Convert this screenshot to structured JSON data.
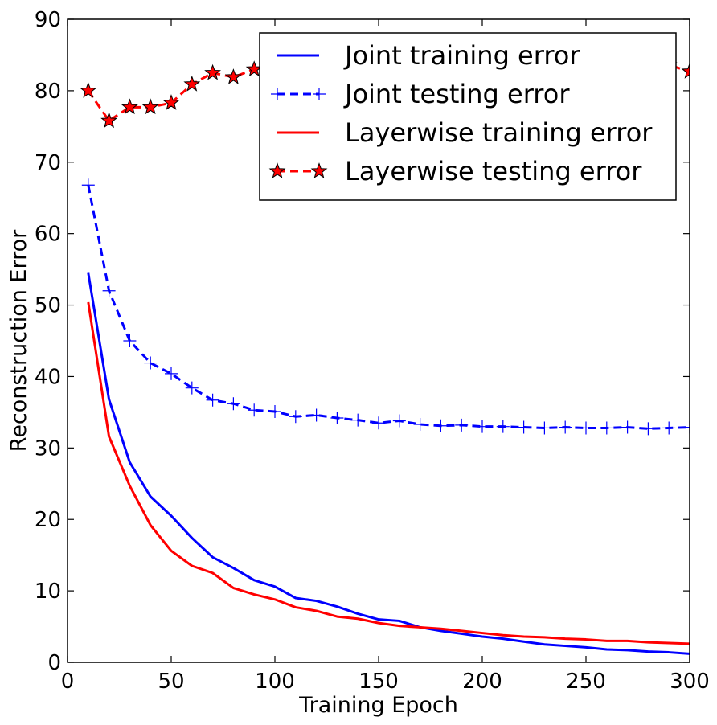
{
  "chart_data": {
    "type": "line",
    "title": "",
    "xlabel": "Training Epoch",
    "ylabel": "Reconstruction Error",
    "xlim": [
      0,
      300
    ],
    "ylim": [
      0,
      90
    ],
    "xticks": [
      "0",
      "50",
      "100",
      "150",
      "200",
      "250",
      "300"
    ],
    "yticks": [
      "0",
      "10",
      "20",
      "30",
      "40",
      "50",
      "60",
      "70",
      "80",
      "90"
    ],
    "grid": false,
    "legend_position": "top-right",
    "x": [
      10,
      20,
      30,
      40,
      50,
      60,
      70,
      80,
      90,
      100,
      110,
      120,
      130,
      140,
      150,
      160,
      170,
      180,
      190,
      200,
      210,
      220,
      230,
      240,
      250,
      260,
      270,
      280,
      290,
      300
    ],
    "series": [
      {
        "name": "Joint training error",
        "color": "#0000ff",
        "line_style": "solid",
        "marker": "none",
        "values": [
          54.5,
          36.8,
          28.0,
          23.2,
          20.5,
          17.4,
          14.7,
          13.2,
          11.5,
          10.6,
          9.0,
          8.6,
          7.8,
          6.8,
          6.0,
          5.8,
          4.9,
          4.4,
          4.0,
          3.6,
          3.3,
          2.9,
          2.5,
          2.3,
          2.1,
          1.8,
          1.7,
          1.5,
          1.4,
          1.2
        ]
      },
      {
        "name": "Joint testing error",
        "color": "#0000ff",
        "line_style": "dashed",
        "marker": "plus",
        "values": [
          66.8,
          52.0,
          45.0,
          41.9,
          40.4,
          38.4,
          36.7,
          36.2,
          35.3,
          35.1,
          34.4,
          34.6,
          34.2,
          33.9,
          33.5,
          33.8,
          33.3,
          33.1,
          33.2,
          33.0,
          33.0,
          32.9,
          32.8,
          32.9,
          32.8,
          32.8,
          32.9,
          32.7,
          32.8,
          32.9
        ]
      },
      {
        "name": "Layerwise training error",
        "color": "#ff0000",
        "line_style": "solid",
        "marker": "none",
        "values": [
          50.4,
          31.6,
          24.7,
          19.2,
          15.6,
          13.5,
          12.5,
          10.4,
          9.5,
          8.8,
          7.7,
          7.2,
          6.4,
          6.1,
          5.5,
          5.1,
          4.9,
          4.7,
          4.4,
          4.1,
          3.8,
          3.6,
          3.5,
          3.3,
          3.2,
          3.0,
          3.0,
          2.8,
          2.7,
          2.6
        ]
      },
      {
        "name": "Layerwise testing error",
        "color": "#ff0000",
        "line_style": "dashed",
        "marker": "star",
        "values": [
          80.0,
          75.8,
          77.7,
          77.7,
          78.3,
          80.9,
          82.5,
          81.9,
          83.0,
          83.3,
          83.5,
          83.7,
          83.6,
          83.9,
          84.0,
          83.8,
          83.9,
          84.2,
          84.0,
          84.3,
          84.1,
          84.0,
          84.1,
          83.9,
          84.0,
          83.8,
          83.7,
          83.5,
          83.6,
          82.7
        ]
      }
    ]
  }
}
